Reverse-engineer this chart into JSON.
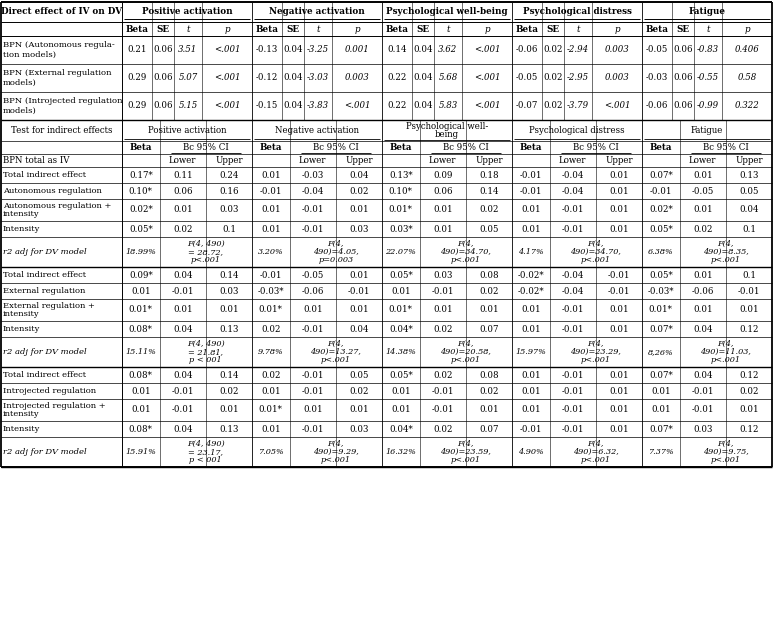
{
  "bg": "#ffffff",
  "direct_rows": [
    [
      "BPN (Autonomous regula-\ntion models)",
      "0.21",
      "0.06",
      "3.51",
      "<.001",
      "-0.13",
      "0.04",
      "-3.25",
      "0.001",
      "0.14",
      "0.04",
      "3.62",
      "<.001",
      "-0.06",
      "0.02",
      "-2.94",
      "0.003",
      "-0.05",
      "0.06",
      "-0.83",
      "0.406"
    ],
    [
      "BPN (External regulation\nmodels)",
      "0.29",
      "0.06",
      "5.07",
      "<.001",
      "-0.12",
      "0.04",
      "-3.03",
      "0.003",
      "0.22",
      "0.04",
      "5.68",
      "<.001",
      "-0.05",
      "0.02",
      "-2.95",
      "0.003",
      "-0.03",
      "0.06",
      "-0.55",
      "0.58"
    ],
    [
      "BPN (Introjected regulation\nmodels)",
      "0.29",
      "0.06",
      "5.15",
      "<.001",
      "-0.15",
      "0.04",
      "-3.83",
      "<.001",
      "0.22",
      "0.04",
      "5.83",
      "<.001",
      "-0.07",
      "0.02",
      "-3.79",
      "<.001",
      "-0.06",
      "0.06",
      "-0.99",
      "0.322"
    ]
  ],
  "autonomous_rows": [
    [
      "Total indirect effect",
      "0.17*",
      "0.11",
      "0.24",
      "0.01",
      "-0.03",
      "0.04",
      "0.13*",
      "0.09",
      "0.18",
      "-0.01",
      "-0.04",
      "0.01",
      "0.07*",
      "0.01",
      "0.13"
    ],
    [
      "Autonomous regulation",
      "0.10*",
      "0.06",
      "0.16",
      "-0.01",
      "-0.04",
      "0.02",
      "0.10*",
      "0.06",
      "0.14",
      "-0.01",
      "-0.04",
      "0.01",
      "-0.01",
      "-0.05",
      "0.05"
    ],
    [
      "Autonomous regulation +\nintensity",
      "0.02*",
      "0.01",
      "0.03",
      "0.01",
      "-0.01",
      "0.01",
      "0.01*",
      "0.01",
      "0.02",
      "0.01",
      "-0.01",
      "0.01",
      "0.02*",
      "0.01",
      "0.04"
    ],
    [
      "Intensity",
      "0.05*",
      "0.02",
      "0.1",
      "0.01",
      "-0.01",
      "0.03",
      "0.03*",
      "0.01",
      "0.05",
      "0.01",
      "-0.01",
      "0.01",
      "0.05*",
      "0.02",
      "0.1"
    ],
    [
      "r2 adj for DV model",
      "18.99%",
      "F(4, 490)\n= 28.72,\np<.001",
      "3.20%",
      "F(4,\n490)=4.05,\np=0.003",
      "22.07%",
      "F(4,\n490)=34.70,\np<.001",
      "4.17%",
      "F(4,\n490)=34.70,\np<.001",
      "6.38%",
      "F(4,\n490)=8.35,\np<.001"
    ]
  ],
  "external_rows": [
    [
      "Total indirect effect",
      "0.09*",
      "0.04",
      "0.14",
      "-0.01",
      "-0.05",
      "0.01",
      "0.05*",
      "0.03",
      "0.08",
      "-0.02*",
      "-0.04",
      "-0.01",
      "0.05*",
      "0.01",
      "0.1"
    ],
    [
      "External regulation",
      "0.01",
      "-0.01",
      "0.03",
      "-0.03*",
      "-0.06",
      "-0.01",
      "0.01",
      "-0.01",
      "0.02",
      "-0.02*",
      "-0.04",
      "-0.01",
      "-0.03*",
      "-0.06",
      "-0.01"
    ],
    [
      "External regulation +\nintensity",
      "0.01*",
      "0.01",
      "0.01",
      "0.01*",
      "0.01",
      "0.01",
      "0.01*",
      "0.01",
      "0.01",
      "0.01",
      "-0.01",
      "0.01",
      "0.01*",
      "0.01",
      "0.01"
    ],
    [
      "Intensity",
      "0.08*",
      "0.04",
      "0.13",
      "0.02",
      "-0.01",
      "0.04",
      "0.04*",
      "0.02",
      "0.07",
      "0.01",
      "-0.01",
      "0.01",
      "0.07*",
      "0.04",
      "0.12"
    ],
    [
      "r2 adj for DV model",
      "15.11%",
      "F(4, 490)\n= 21.81,\np < 001",
      "9.78%",
      "F(4,\n490)=13.27,\np<.001",
      "14.38%",
      "F(4,\n490)=20.58,\np<.001",
      "15.97%",
      "F(4,\n490)=23.29,\np<.001",
      "8,26%",
      "F(4,\n490)=11.03,\np<.001"
    ]
  ],
  "introjected_rows": [
    [
      "Total indirect effect",
      "0.08*",
      "0.04",
      "0.14",
      "0.02",
      "-0.01",
      "0.05",
      "0.05*",
      "0.02",
      "0.08",
      "0.01",
      "-0.01",
      "0.01",
      "0.07*",
      "0.04",
      "0.12"
    ],
    [
      "Introjected regulation",
      "0.01",
      "-0.01",
      "0.02",
      "0.01",
      "-0.01",
      "0.02",
      "0.01",
      "-0.01",
      "0.02",
      "0.01",
      "-0.01",
      "0.01",
      "0.01",
      "-0.01",
      "0.02"
    ],
    [
      "Introjected regulation +\nintensity",
      "0.01",
      "-0.01",
      "0.01",
      "0.01*",
      "0.01",
      "0.01",
      "0.01",
      "-0.01",
      "0.01",
      "0.01",
      "-0.01",
      "0.01",
      "0.01",
      "-0.01",
      "0.01"
    ],
    [
      "Intensity",
      "0.08*",
      "0.04",
      "0.13",
      "0.01",
      "-0.01",
      "0.03",
      "0.04*",
      "0.02",
      "0.07",
      "-0.01",
      "-0.01",
      "0.01",
      "0.07*",
      "0.03",
      "0.12"
    ],
    [
      "r2 adj for DV model",
      "15.91%",
      "F(4, 490)\n= 23.17,\np < 001",
      "7.05%",
      "F(4,\n490)=9.29,\np<.001",
      "16.32%",
      "F(4,\n490)=23.59,\np<.001",
      "4.90%",
      "F(4,\n490)=6.32,\np<.001",
      "7.37%",
      "F(4,\n490)=9.75,\np<.001"
    ]
  ],
  "group_labels_direct": [
    "Positive activation",
    "Negative activation",
    "Psychological well-being",
    "Psychological distress",
    "Fatigue"
  ],
  "group_labels_indirect": [
    "Positive activation",
    "Negative activation",
    "Psychological well-\nbeing",
    "Psychological distress",
    "Fatigue"
  ]
}
